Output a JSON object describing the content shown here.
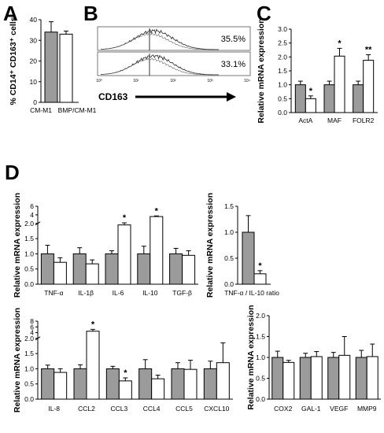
{
  "panel_letters": [
    "A",
    "B",
    "C",
    "D"
  ],
  "chart_data": [
    {
      "id": "A",
      "type": "bar",
      "ylabel": "% CD14⁺ CD163⁺ cells",
      "categories": [
        "CM-M1",
        "BMP/CM-M1"
      ],
      "values": [
        34,
        33
      ],
      "errors": [
        5,
        1.5
      ],
      "fills": [
        "#9b9b9b",
        "#ffffff"
      ],
      "ylim": [
        0,
        40
      ],
      "yticks": [
        0,
        10,
        20,
        30,
        40
      ]
    },
    {
      "id": "B",
      "type": "histogram",
      "xlabel": "CD163",
      "percentages": [
        "35.5%",
        "33.1%"
      ],
      "xtick_labels": [
        "10⁰",
        "10¹",
        "10²",
        "10³",
        "10⁴"
      ]
    },
    {
      "id": "C",
      "type": "bar",
      "ylabel": "Relative mRNA expression",
      "categories": [
        "ActA",
        "MAF",
        "FOLR2"
      ],
      "series": [
        {
          "values": [
            1.0,
            1.0,
            1.0
          ],
          "errors": [
            0.13,
            0.13,
            0.13
          ],
          "fill": "#9b9b9b"
        },
        {
          "values": [
            0.5,
            2.03,
            1.88
          ],
          "errors": [
            0.1,
            0.28,
            0.2
          ],
          "fill": "#ffffff"
        }
      ],
      "stars": [
        [
          "",
          "*"
        ],
        [
          "",
          "*"
        ],
        [
          "",
          "**"
        ]
      ],
      "ylim": [
        0,
        3.0
      ],
      "yticks": [
        "0.0",
        "0.5",
        "1.0",
        "1.5",
        "2.0",
        "2.5",
        "3.0"
      ]
    },
    {
      "id": "D-cytokines",
      "type": "bar",
      "ylabel": "Relative mRNA expression",
      "categories": [
        "TNF-α",
        "IL-1β",
        "IL-6",
        "IL-10",
        "TGF-β"
      ],
      "series": [
        {
          "values": [
            1.0,
            1.0,
            1.0,
            1.0,
            1.0
          ],
          "errors": [
            0.28,
            0.2,
            0.1,
            0.25,
            0.18
          ],
          "fill": "#9b9b9b"
        },
        {
          "values": [
            0.72,
            0.67,
            1.95,
            3.6,
            0.95
          ],
          "errors": [
            0.15,
            0.13,
            0.18,
            0.15,
            0.15
          ],
          "fill": "#ffffff"
        }
      ],
      "stars": [
        [
          "",
          ""
        ],
        [
          "",
          ""
        ],
        [
          "",
          "*"
        ],
        [
          "",
          "*"
        ],
        [
          "",
          ""
        ]
      ],
      "ylim": [
        0,
        6
      ],
      "broken_axis": {
        "lower": [
          0,
          2
        ],
        "upper": [
          2,
          6
        ],
        "lower_fraction": 0.78
      },
      "yticks": [
        "0.0",
        "0.5",
        "1.0",
        "1.5",
        "2.0",
        "4",
        "6"
      ]
    },
    {
      "id": "D-ratio",
      "type": "bar",
      "ylabel": "Relative mRNA expression",
      "xlabel": "TNF-α / IL-10 ratio",
      "categories": [
        ""
      ],
      "series": [
        {
          "values": [
            1.0
          ],
          "errors": [
            0.32
          ],
          "fill": "#9b9b9b"
        },
        {
          "values": [
            0.2
          ],
          "errors": [
            0.06
          ],
          "fill": "#ffffff"
        }
      ],
      "stars": [
        [
          "",
          "*"
        ]
      ],
      "ylim": [
        0,
        1.5
      ],
      "yticks": [
        "0.0",
        "0.5",
        "1.0",
        "1.5"
      ]
    },
    {
      "id": "D-chemokines",
      "type": "bar",
      "ylabel": "Relative mRNA expression",
      "categories": [
        "IL-8",
        "CCL2",
        "CCL3",
        "CCL4",
        "CCL5",
        "CXCL10"
      ],
      "series": [
        {
          "values": [
            1.0,
            1.0,
            1.0,
            1.0,
            1.0,
            1.0
          ],
          "errors": [
            0.12,
            0.13,
            0.08,
            0.3,
            0.2,
            0.25
          ],
          "fill": "#9b9b9b"
        },
        {
          "values": [
            0.88,
            4.5,
            0.6,
            0.67,
            0.98,
            1.2
          ],
          "errors": [
            0.12,
            0.65,
            0.1,
            0.12,
            0.3,
            0.65
          ],
          "fill": "#ffffff"
        }
      ],
      "stars": [
        [
          "",
          ""
        ],
        [
          "",
          "*"
        ],
        [
          "",
          "*"
        ],
        [
          "",
          ""
        ],
        [
          "",
          ""
        ],
        [
          "",
          ""
        ]
      ],
      "ylim": [
        0,
        8
      ],
      "broken_axis": {
        "lower": [
          0,
          2
        ],
        "upper": [
          2,
          8
        ],
        "lower_fraction": 0.78
      },
      "yticks": [
        "0.0",
        "0.5",
        "1.0",
        "1.5",
        "2.0",
        "4",
        "6",
        "8"
      ]
    },
    {
      "id": "D-other",
      "type": "bar",
      "ylabel": "Relative mRNA expression",
      "categories": [
        "COX2",
        "GAL-1",
        "VEGF",
        "MMP9"
      ],
      "series": [
        {
          "values": [
            1.0,
            1.0,
            1.0,
            1.0
          ],
          "errors": [
            0.15,
            0.1,
            0.12,
            0.17
          ],
          "fill": "#9b9b9b"
        },
        {
          "values": [
            0.88,
            1.02,
            1.05,
            1.02
          ],
          "errors": [
            0.05,
            0.12,
            0.45,
            0.3
          ],
          "fill": "#ffffff"
        }
      ],
      "stars": [
        [
          "",
          ""
        ],
        [
          "",
          ""
        ],
        [
          "",
          ""
        ],
        [
          "",
          ""
        ]
      ],
      "ylim": [
        0,
        2.0
      ],
      "yticks": [
        "0.0",
        "0.5",
        "1.0",
        "1.5",
        "2.0"
      ]
    }
  ]
}
